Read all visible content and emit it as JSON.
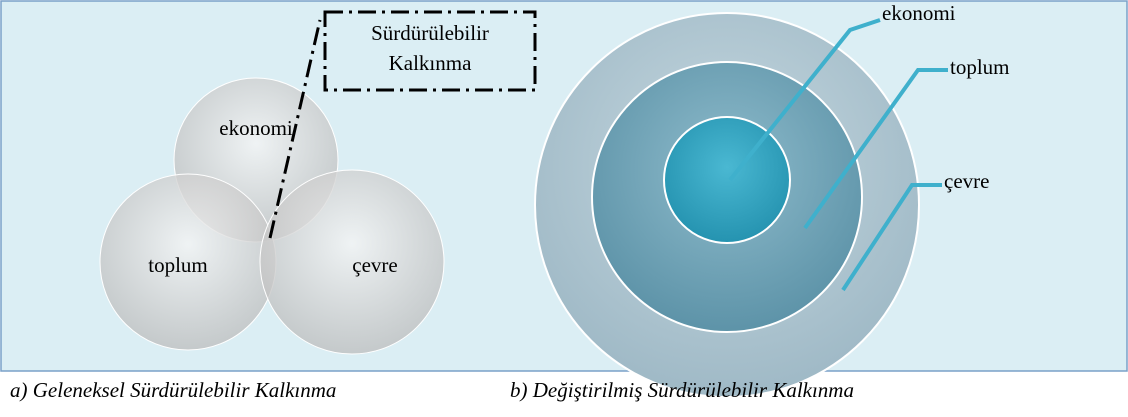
{
  "venn": {
    "nodes": [
      {
        "label": "ekonomi"
      },
      {
        "label": "toplum"
      },
      {
        "label": "çevre"
      }
    ],
    "callout": "Sürdürülebilir Kalkınma",
    "caption": "a) Geleneksel Sürdürülebilir Kalkınma"
  },
  "nested": {
    "labels": [
      "ekonomi",
      "toplum",
      "çevre"
    ],
    "caption": "b) Değiştirilmiş Sürdürülebilir Kalkınma"
  }
}
